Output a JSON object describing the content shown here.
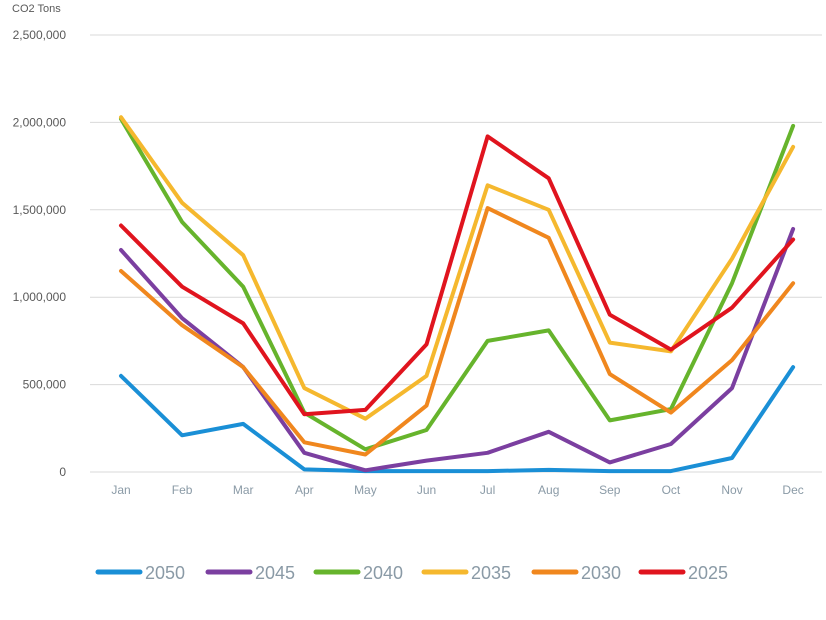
{
  "chart_data": {
    "type": "line",
    "title": "",
    "xlabel": "",
    "ylabel": "CO2 Tons",
    "ylim": [
      0,
      2500000
    ],
    "yticks": [
      0,
      500000,
      1000000,
      1500000,
      2000000,
      2500000
    ],
    "ytick_labels": [
      "0",
      "500,000",
      "1,000,000",
      "1,500,000",
      "2,000,000",
      "2,500,000"
    ],
    "grid": true,
    "legend_position": "bottom",
    "categories": [
      "Jan",
      "Feb",
      "Mar",
      "Apr",
      "May",
      "Jun",
      "Jul",
      "Aug",
      "Sep",
      "Oct",
      "Nov",
      "Dec"
    ],
    "series": [
      {
        "name": "2050",
        "color": "#1a8fd6",
        "values": [
          550000,
          210000,
          275000,
          15000,
          5000,
          5000,
          5000,
          12000,
          5000,
          5000,
          80000,
          600000
        ]
      },
      {
        "name": "2045",
        "color": "#7b3fa0",
        "values": [
          1270000,
          880000,
          600000,
          110000,
          10000,
          65000,
          110000,
          230000,
          55000,
          160000,
          480000,
          1390000
        ]
      },
      {
        "name": "2040",
        "color": "#66b42c",
        "values": [
          2020000,
          1430000,
          1060000,
          340000,
          130000,
          240000,
          750000,
          810000,
          295000,
          360000,
          1080000,
          1980000
        ]
      },
      {
        "name": "2035",
        "color": "#f5b82e",
        "values": [
          2030000,
          1540000,
          1240000,
          480000,
          305000,
          550000,
          1640000,
          1500000,
          740000,
          690000,
          1220000,
          1860000
        ]
      },
      {
        "name": "2030",
        "color": "#f0871e",
        "values": [
          1150000,
          840000,
          600000,
          170000,
          100000,
          380000,
          1510000,
          1340000,
          560000,
          340000,
          640000,
          1080000
        ]
      },
      {
        "name": "2025",
        "color": "#e0141e",
        "values": [
          1410000,
          1060000,
          850000,
          330000,
          355000,
          730000,
          1920000,
          1680000,
          900000,
          700000,
          940000,
          1330000
        ]
      }
    ]
  }
}
